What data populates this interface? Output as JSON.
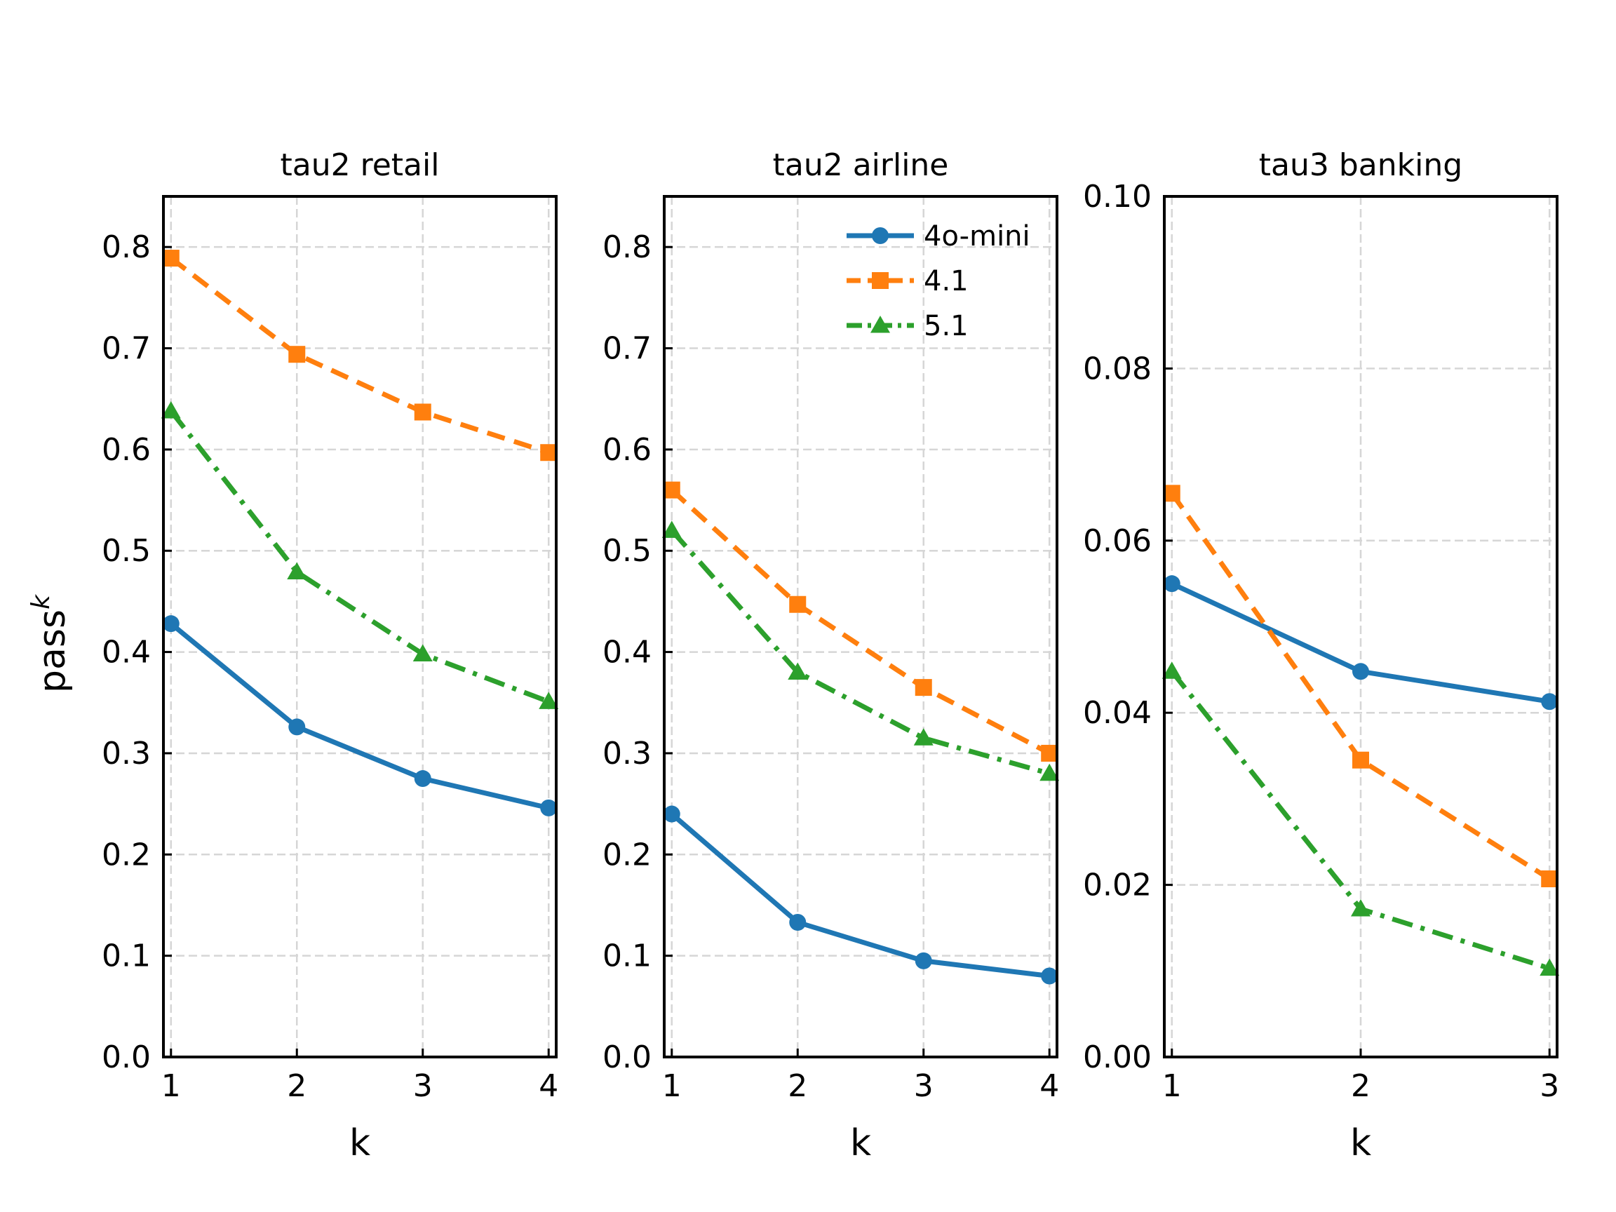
{
  "figure": {
    "ylabel_base": "pass",
    "ylabel_superscript": "k",
    "legend": [
      "4o-mini",
      "4.1",
      "5.1"
    ]
  },
  "colors": {
    "4o-mini": "#1f77b4",
    "4.1": "#ff7f0e",
    "5.1": "#2ca02c"
  },
  "chart_data": [
    {
      "type": "line",
      "title": "tau2 retail",
      "xlabel": "k",
      "ylabel": "pass^k",
      "x": [
        1,
        2,
        3,
        4
      ],
      "ylim": [
        0,
        0.85
      ],
      "yticks": [
        "0.0",
        "0.1",
        "0.2",
        "0.3",
        "0.4",
        "0.5",
        "0.6",
        "0.7",
        "0.8"
      ],
      "grid": true,
      "series": [
        {
          "name": "4o-mini",
          "values": [
            0.428,
            0.326,
            0.275,
            0.246
          ]
        },
        {
          "name": "4.1",
          "values": [
            0.789,
            0.694,
            0.637,
            0.597
          ]
        },
        {
          "name": "5.1",
          "values": [
            0.638,
            0.479,
            0.398,
            0.351
          ]
        }
      ]
    },
    {
      "type": "line",
      "title": "tau2 airline",
      "xlabel": "k",
      "x": [
        1,
        2,
        3,
        4
      ],
      "ylim": [
        0,
        0.85
      ],
      "yticks": [
        "0.0",
        "0.1",
        "0.2",
        "0.3",
        "0.4",
        "0.5",
        "0.6",
        "0.7",
        "0.8"
      ],
      "grid": true,
      "legend_position": "top-right",
      "series": [
        {
          "name": "4o-mini",
          "values": [
            0.24,
            0.133,
            0.095,
            0.08
          ]
        },
        {
          "name": "4.1",
          "values": [
            0.56,
            0.447,
            0.365,
            0.3
          ]
        },
        {
          "name": "5.1",
          "values": [
            0.52,
            0.38,
            0.315,
            0.28
          ]
        }
      ]
    },
    {
      "type": "line",
      "title": "tau3 banking",
      "xlabel": "k",
      "x": [
        1,
        2,
        3
      ],
      "ylim": [
        0,
        0.1
      ],
      "yticks": [
        "0.00",
        "0.02",
        "0.04",
        "0.06",
        "0.08",
        "0.10"
      ],
      "grid": true,
      "series": [
        {
          "name": "4o-mini",
          "values": [
            0.055,
            0.0448,
            0.0413
          ]
        },
        {
          "name": "4.1",
          "values": [
            0.0655,
            0.0345,
            0.0207
          ]
        },
        {
          "name": "5.1",
          "values": [
            0.0448,
            0.0172,
            0.0103
          ]
        }
      ]
    }
  ]
}
